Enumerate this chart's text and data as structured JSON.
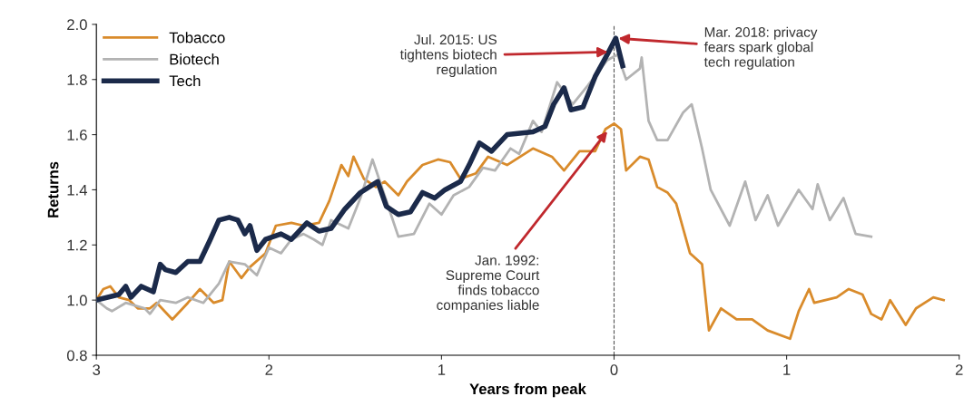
{
  "chart_data": {
    "type": "line",
    "xlabel": "Years from peak",
    "ylabel": "Returns",
    "xlim": [
      -3,
      2
    ],
    "ylim": [
      0.8,
      2.0
    ],
    "xticks": [
      {
        "value": -3,
        "label": "3"
      },
      {
        "value": -2,
        "label": "2"
      },
      {
        "value": -1,
        "label": "1"
      },
      {
        "value": 0,
        "label": "0"
      },
      {
        "value": 1,
        "label": "1"
      },
      {
        "value": 2,
        "label": "2"
      }
    ],
    "yticks": [
      {
        "value": 0.8,
        "label": "0.8"
      },
      {
        "value": 1.0,
        "label": "1.0"
      },
      {
        "value": 1.2,
        "label": "1.2"
      },
      {
        "value": 1.4,
        "label": "1.4"
      },
      {
        "value": 1.6,
        "label": "1.6"
      },
      {
        "value": 1.8,
        "label": "1.8"
      },
      {
        "value": 2.0,
        "label": "2.0"
      }
    ],
    "grid": false,
    "legend": "top left",
    "marker": "none",
    "line_style": "solid",
    "series": [
      {
        "name": "Tobacco",
        "color": "#d98b2b",
        "x": [
          -3,
          -2.96,
          -2.92,
          -2.87,
          -2.81,
          -2.76,
          -2.69,
          -2.65,
          -2.56,
          -2.47,
          -2.4,
          -2.32,
          -2.27,
          -2.23,
          -2.16,
          -2.11,
          -2.02,
          -1.96,
          -1.87,
          -1.8,
          -1.71,
          -1.65,
          -1.58,
          -1.54,
          -1.51,
          -1.45,
          -1.38,
          -1.33,
          -1.25,
          -1.2,
          -1.11,
          -1.02,
          -0.95,
          -0.89,
          -0.8,
          -0.73,
          -0.62,
          -0.47,
          -0.36,
          -0.29,
          -0.2,
          -0.11,
          -0.05,
          0,
          0.04,
          0.07,
          0.15,
          0.2,
          0.25,
          0.31,
          0.36,
          0.44,
          0.51,
          0.55,
          0.62,
          0.71,
          0.8,
          0.89,
          1.02,
          1.07,
          1.13,
          1.16,
          1.29,
          1.36,
          1.44,
          1.49,
          1.55,
          1.6,
          1.69,
          1.75,
          1.85,
          1.91
        ],
        "values": [
          1.0,
          1.04,
          1.05,
          1.01,
          1.0,
          0.97,
          0.97,
          0.99,
          0.93,
          0.99,
          1.04,
          0.99,
          1.0,
          1.14,
          1.08,
          1.12,
          1.17,
          1.27,
          1.28,
          1.27,
          1.28,
          1.36,
          1.49,
          1.45,
          1.52,
          1.44,
          1.41,
          1.43,
          1.38,
          1.43,
          1.49,
          1.51,
          1.5,
          1.44,
          1.46,
          1.52,
          1.49,
          1.55,
          1.52,
          1.47,
          1.54,
          1.54,
          1.62,
          1.64,
          1.62,
          1.47,
          1.52,
          1.51,
          1.41,
          1.39,
          1.35,
          1.17,
          1.13,
          0.89,
          0.97,
          0.93,
          0.93,
          0.89,
          0.86,
          0.96,
          1.04,
          0.99,
          1.01,
          1.04,
          1.02,
          0.95,
          0.93,
          1.0,
          0.91,
          0.97,
          1.01,
          1.0
        ]
      },
      {
        "name": "Biotech",
        "color": "#b3b3b3",
        "x": [
          -3,
          -2.94,
          -2.91,
          -2.83,
          -2.72,
          -2.69,
          -2.63,
          -2.54,
          -2.47,
          -2.38,
          -2.29,
          -2.23,
          -2.14,
          -2.07,
          -2.0,
          -1.93,
          -1.87,
          -1.8,
          -1.74,
          -1.69,
          -1.64,
          -1.54,
          -1.47,
          -1.4,
          -1.33,
          -1.25,
          -1.16,
          -1.07,
          -1.0,
          -0.93,
          -0.84,
          -0.76,
          -0.69,
          -0.6,
          -0.55,
          -0.47,
          -0.42,
          -0.33,
          -0.24,
          -0.15,
          -0.04,
          0.02,
          0.07,
          0.15,
          0.16,
          0.2,
          0.25,
          0.31,
          0.4,
          0.45,
          0.51,
          0.56,
          0.67,
          0.76,
          0.82,
          0.89,
          0.95,
          1.07,
          1.15,
          1.18,
          1.25,
          1.33,
          1.4,
          1.49
        ],
        "values": [
          1.0,
          0.97,
          0.96,
          0.99,
          0.97,
          0.95,
          1.0,
          0.99,
          1.01,
          0.99,
          1.06,
          1.14,
          1.13,
          1.09,
          1.19,
          1.17,
          1.22,
          1.24,
          1.22,
          1.2,
          1.29,
          1.26,
          1.37,
          1.51,
          1.38,
          1.23,
          1.24,
          1.35,
          1.31,
          1.38,
          1.41,
          1.48,
          1.47,
          1.55,
          1.53,
          1.65,
          1.61,
          1.79,
          1.71,
          1.78,
          1.87,
          1.89,
          1.8,
          1.84,
          1.88,
          1.65,
          1.58,
          1.58,
          1.68,
          1.71,
          1.55,
          1.4,
          1.27,
          1.43,
          1.29,
          1.38,
          1.27,
          1.4,
          1.33,
          1.42,
          1.29,
          1.37,
          1.24,
          1.23
        ]
      },
      {
        "name": "Tech",
        "color": "#1b2a4a",
        "x": [
          -3,
          -2.87,
          -2.83,
          -2.8,
          -2.74,
          -2.67,
          -2.63,
          -2.6,
          -2.54,
          -2.47,
          -2.4,
          -2.34,
          -2.29,
          -2.23,
          -2.18,
          -2.14,
          -2.11,
          -2.07,
          -2.02,
          -1.93,
          -1.87,
          -1.78,
          -1.71,
          -1.64,
          -1.56,
          -1.47,
          -1.37,
          -1.32,
          -1.25,
          -1.18,
          -1.11,
          -1.04,
          -0.98,
          -0.89,
          -0.84,
          -0.78,
          -0.71,
          -0.62,
          -0.47,
          -0.4,
          -0.35,
          -0.29,
          -0.25,
          -0.18,
          -0.11,
          -0.04,
          0.01,
          0.05
        ],
        "values": [
          1.0,
          1.02,
          1.05,
          1.01,
          1.05,
          1.03,
          1.13,
          1.11,
          1.1,
          1.14,
          1.14,
          1.22,
          1.29,
          1.3,
          1.29,
          1.24,
          1.27,
          1.18,
          1.22,
          1.24,
          1.22,
          1.28,
          1.25,
          1.26,
          1.33,
          1.39,
          1.43,
          1.34,
          1.31,
          1.32,
          1.39,
          1.37,
          1.4,
          1.43,
          1.49,
          1.57,
          1.54,
          1.6,
          1.61,
          1.63,
          1.71,
          1.77,
          1.69,
          1.7,
          1.81,
          1.89,
          1.95,
          1.85
        ]
      }
    ],
    "ref_lines": [
      {
        "axis": "x",
        "value": 0,
        "color": "#555555",
        "line_style": "dashed"
      }
    ],
    "annotations": [
      {
        "text": "Jul. 2015: US\ntightens biotech\nregulation",
        "x": -0.02,
        "y": 1.9
      },
      {
        "text": "Mar. 2018: privacy\nfears spark global\ntech regulation",
        "x": 0.01,
        "y": 1.95
      },
      {
        "text": "Jan. 1992:\nSupreme Court\nfinds tobacco\ncompanies liable",
        "x": -0.03,
        "y": 1.62
      }
    ]
  }
}
